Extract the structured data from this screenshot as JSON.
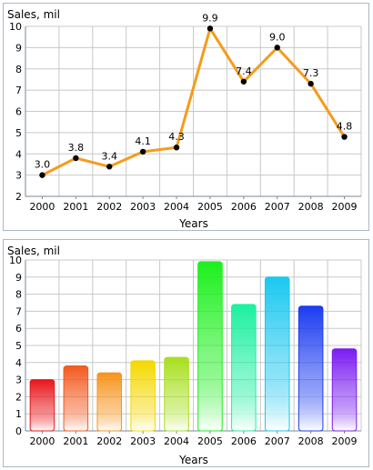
{
  "chart_data": [
    {
      "type": "line",
      "ylabel": "Sales, mil",
      "xlabel": "Years",
      "categories": [
        "2000",
        "2001",
        "2002",
        "2003",
        "2004",
        "2005",
        "2006",
        "2007",
        "2008",
        "2009"
      ],
      "values": [
        3.0,
        3.8,
        3.4,
        4.1,
        4.3,
        9.9,
        7.4,
        9.0,
        7.3,
        4.8
      ],
      "data_labels": [
        "3.0",
        "3.8",
        "3.4",
        "4.1",
        "4.3",
        "9.9",
        "7.4",
        "9.0",
        "7.3",
        "4.8"
      ],
      "ylim": [
        2,
        10
      ],
      "yticks": [
        "2",
        "3",
        "4",
        "5",
        "6",
        "7",
        "8",
        "9",
        "10"
      ],
      "grid": true,
      "line_color": "#f59b1c",
      "marker_color": "#000000"
    },
    {
      "type": "bar",
      "ylabel": "Sales, mil",
      "xlabel": "Years",
      "categories": [
        "2000",
        "2001",
        "2002",
        "2003",
        "2004",
        "2005",
        "2006",
        "2007",
        "2008",
        "2009"
      ],
      "values": [
        3.0,
        3.8,
        3.4,
        4.1,
        4.3,
        9.9,
        7.4,
        9.0,
        7.3,
        4.8
      ],
      "ylim": [
        0,
        10
      ],
      "yticks": [
        "0",
        "1",
        "2",
        "3",
        "4",
        "5",
        "6",
        "7",
        "8",
        "9",
        "10"
      ],
      "grid": true,
      "bar_colors": [
        "#e8161b",
        "#f25a1f",
        "#f7941d",
        "#f5d800",
        "#a8e01d",
        "#1cf01c",
        "#1cf0a0",
        "#1cc8f0",
        "#1c3cf0",
        "#7a1cf0"
      ]
    }
  ]
}
